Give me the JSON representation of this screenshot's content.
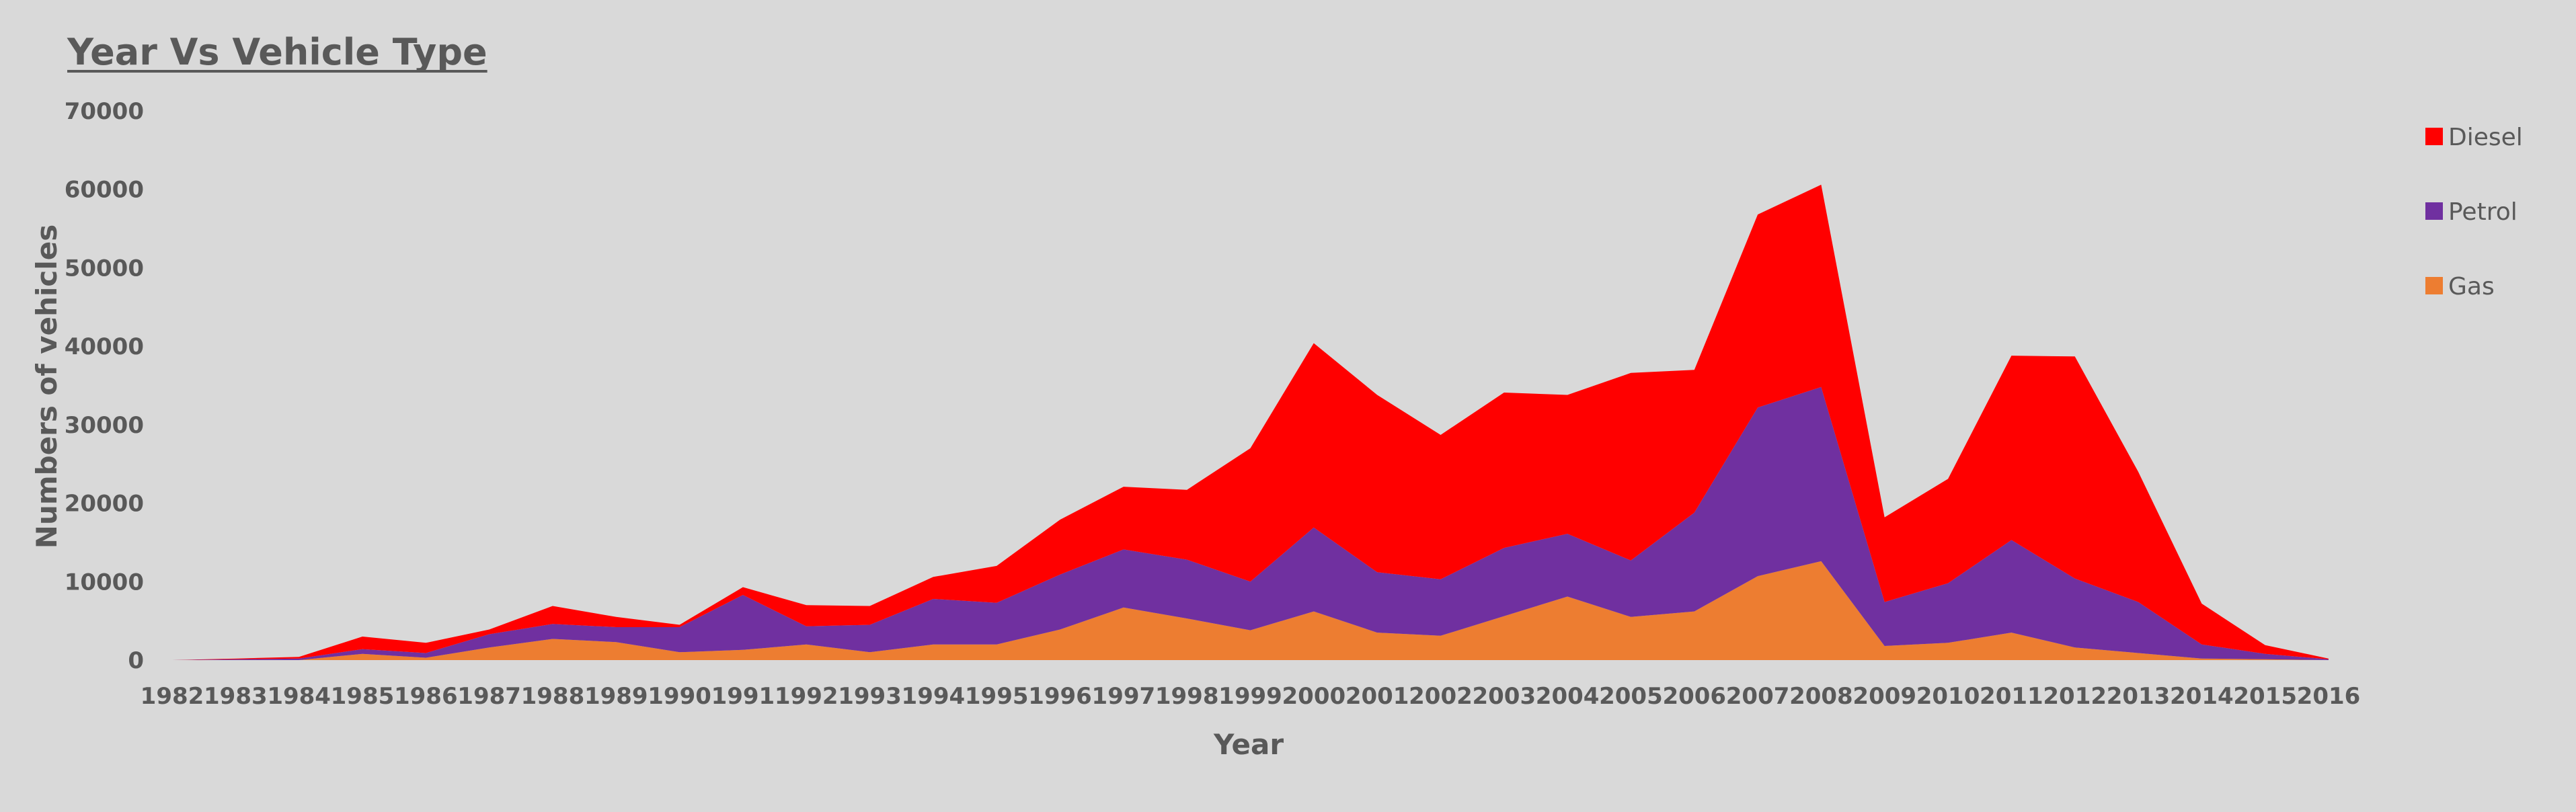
{
  "chart_data": {
    "type": "area",
    "stacked": true,
    "title": "Year Vs Vehicle Type",
    "xlabel": "Year",
    "ylabel": "Numbers of vehicles",
    "ylim": [
      0,
      70000
    ],
    "yticks": [
      0,
      10000,
      20000,
      30000,
      40000,
      50000,
      60000,
      70000
    ],
    "categories": [
      "1982",
      "1983",
      "1984",
      "1985",
      "1986",
      "1987",
      "1988",
      "1989",
      "1990",
      "1991",
      "1992",
      "1993",
      "1994",
      "1995",
      "1996",
      "1997",
      "1998",
      "1999",
      "2000",
      "2001",
      "2002",
      "2003",
      "2004",
      "2005",
      "2006",
      "2007",
      "2008",
      "2009",
      "2010",
      "2011",
      "2012",
      "2013",
      "2014",
      "2015",
      "2016"
    ],
    "legend_position": "right",
    "series": [
      {
        "name": "Gas",
        "color": "#ed7d31",
        "values": [
          0,
          0,
          0,
          800,
          300,
          1600,
          2700,
          2300,
          1000,
          1300,
          2000,
          1000,
          2000,
          2000,
          3900,
          6700,
          5300,
          3800,
          6200,
          3500,
          3100,
          5600,
          8100,
          5500,
          6200,
          10700,
          12600,
          1800,
          2200,
          3500,
          1600,
          900,
          200,
          100,
          0
        ]
      },
      {
        "name": "Petrol",
        "color": "#7030a0",
        "values": [
          0,
          100,
          200,
          600,
          600,
          1700,
          1900,
          1900,
          3200,
          7000,
          2300,
          3500,
          5800,
          5300,
          7000,
          7400,
          7500,
          6200,
          10700,
          7700,
          7200,
          8700,
          8000,
          7200,
          12600,
          21500,
          22200,
          5600,
          7600,
          11800,
          8800,
          6500,
          1800,
          700,
          100
        ]
      },
      {
        "name": "Diesel",
        "color": "#ff0000",
        "values": [
          0,
          100,
          200,
          1600,
          1300,
          600,
          2300,
          1300,
          300,
          1000,
          2700,
          2400,
          2800,
          4700,
          7000,
          8000,
          8900,
          17000,
          23500,
          22600,
          18400,
          19800,
          17700,
          23900,
          18200,
          24600,
          25800,
          10800,
          13300,
          23500,
          28300,
          16600,
          5200,
          1100,
          100
        ]
      }
    ]
  }
}
